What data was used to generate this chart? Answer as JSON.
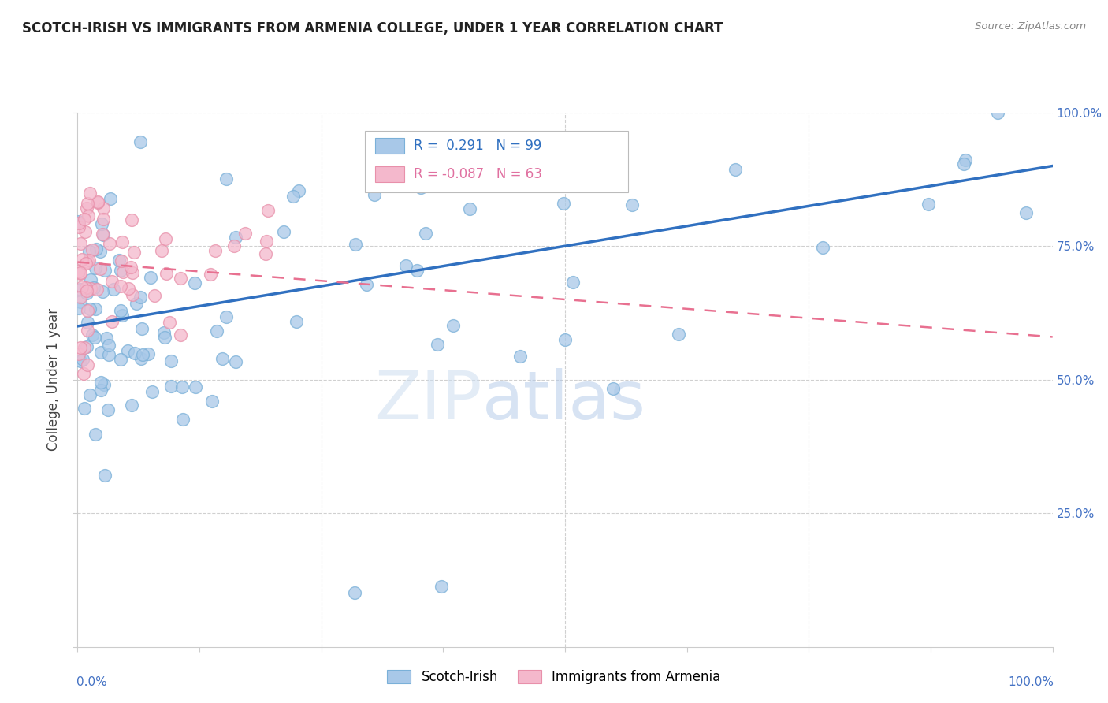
{
  "title": "SCOTCH-IRISH VS IMMIGRANTS FROM ARMENIA COLLEGE, UNDER 1 YEAR CORRELATION CHART",
  "source": "Source: ZipAtlas.com",
  "ylabel": "College, Under 1 year",
  "blue_R": 0.291,
  "blue_N": 99,
  "pink_R": -0.087,
  "pink_N": 63,
  "blue_color": "#a8c8e8",
  "blue_edge_color": "#7ab0d8",
  "pink_color": "#f4b8cc",
  "pink_edge_color": "#e890aa",
  "blue_line_color": "#3070c0",
  "pink_line_color": "#e87090",
  "background_color": "#ffffff",
  "grid_color": "#d0d0d0",
  "right_axis_color": "#4472c4",
  "watermark_zip_color": "#c8d8f0",
  "watermark_atlas_color": "#b8c8e0",
  "title_color": "#222222",
  "source_color": "#888888",
  "legend_text_color": "#3070c0"
}
